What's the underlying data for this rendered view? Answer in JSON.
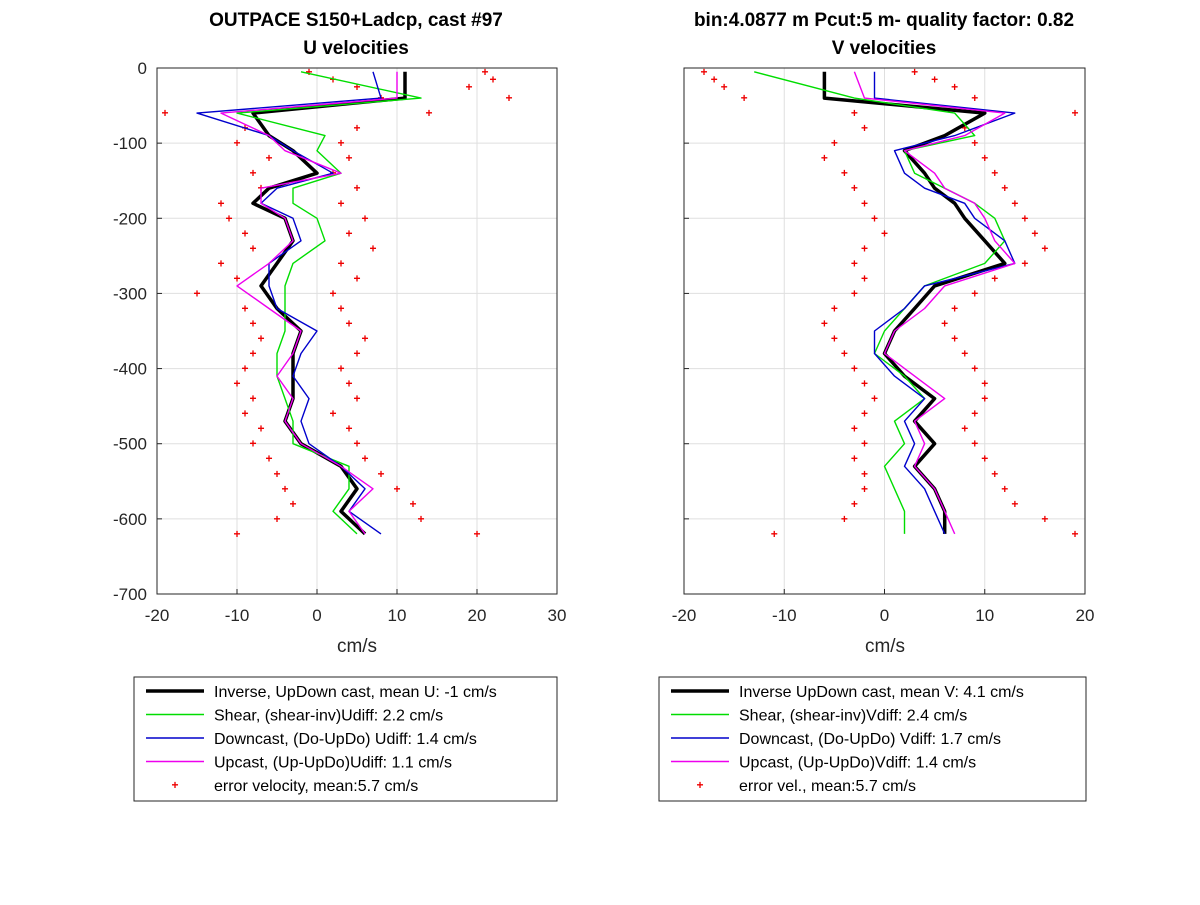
{
  "chart_data": [
    {
      "type": "line",
      "title_line1": "OUTPACE S150+Ladcp, cast #97",
      "title_line2": "U velocities",
      "xlabel": "cm/s",
      "ylabel": "",
      "xlim": [
        -20,
        30
      ],
      "ylim": [
        -700,
        0
      ],
      "xticks": [
        "-20",
        "-10",
        "0",
        "10",
        "20",
        "30"
      ],
      "yticks": [
        "0",
        "-100",
        "-200",
        "-300",
        "-400",
        "-500",
        "-600",
        "-700"
      ],
      "grid": true,
      "legend_position": "below",
      "depth": [
        -5,
        -40,
        -60,
        -90,
        -110,
        -140,
        -160,
        -180,
        -200,
        -230,
        -260,
        -290,
        -320,
        -350,
        -380,
        -410,
        -440,
        -470,
        -500,
        -530,
        -560,
        -590,
        -620
      ],
      "series": [
        {
          "name": "Inverse, UpDown cast, mean U:  -1 cm/s",
          "color": "#000000",
          "width": 3.5,
          "values": [
            11,
            11,
            -8,
            -6,
            -3,
            0,
            -6,
            -8,
            -4,
            -3,
            -5,
            -7,
            -5,
            -2,
            -3,
            -3,
            -3,
            -4,
            -2,
            3,
            5,
            3,
            6
          ]
        },
        {
          "name": "Shear, (shear-inv)Udiff:  2.2 cm/s",
          "color": "#00dd00",
          "width": 1.4,
          "values": [
            -2,
            13,
            -10,
            1,
            0,
            3,
            -3,
            -3,
            0,
            1,
            -3,
            -4,
            -4,
            -4,
            -5,
            -5,
            -4,
            -3,
            -3,
            4,
            4,
            2,
            5
          ]
        },
        {
          "name": "Downcast, (Do-UpDo) Udiff:  1.4 cm/s",
          "color": "#0000cc",
          "width": 1.4,
          "values": [
            7,
            8,
            -15,
            -6,
            -3,
            2,
            -5,
            -7,
            -3,
            -2,
            -6,
            -6,
            -5,
            0,
            -2,
            -3,
            -1,
            -2,
            -1,
            3,
            6,
            4,
            8
          ]
        },
        {
          "name": "Upcast, (Up-UpDo)Udiff:  1.1 cm/s",
          "color": "#ee00ee",
          "width": 1.4,
          "values": [
            10,
            10,
            -12,
            -6,
            -4,
            3,
            -7,
            -7,
            -4,
            -3,
            -6,
            -10,
            -6,
            -2,
            -3,
            -5,
            -3,
            -4,
            -2,
            3,
            7,
            4,
            6
          ]
        }
      ],
      "error_velocity": {
        "name": "error velocity, mean:5.7 cm/s",
        "color": "#ee0000",
        "depth": [
          -5,
          -15,
          -25,
          -40,
          -60,
          -80,
          -100,
          -120,
          -140,
          -160,
          -180,
          -200,
          -220,
          -240,
          -260,
          -280,
          -300,
          -320,
          -340,
          -360,
          -380,
          -400,
          -420,
          -440,
          -460,
          -480,
          -500,
          -520,
          -540,
          -560,
          -580,
          -600,
          -620
        ],
        "left": [
          -1,
          2,
          5,
          8,
          -19,
          -9,
          -10,
          -6,
          -8,
          -7,
          -12,
          -11,
          -9,
          -8,
          -12,
          -10,
          -15,
          -9,
          -8,
          -7,
          -8,
          -9,
          -10,
          -8,
          -9,
          -7,
          -8,
          -6,
          -5,
          -4,
          -3,
          -5,
          -10
        ],
        "right": [
          21,
          22,
          19,
          24,
          14,
          5,
          3,
          4,
          2,
          5,
          3,
          6,
          4,
          7,
          3,
          5,
          2,
          3,
          4,
          6,
          5,
          3,
          4,
          5,
          2,
          4,
          5,
          6,
          8,
          10,
          12,
          13,
          20
        ]
      }
    },
    {
      "type": "line",
      "title_line1": "bin:4.0877 m  Pcut:5 m- quality factor:  0.82",
      "title_line2": "V velocities",
      "xlabel": "cm/s",
      "ylabel": "",
      "xlim": [
        -20,
        20
      ],
      "ylim": [
        -700,
        0
      ],
      "xticks": [
        "-20",
        "-10",
        "0",
        "10",
        "20"
      ],
      "yticks": [],
      "grid": true,
      "legend_position": "below",
      "depth": [
        -5,
        -40,
        -60,
        -90,
        -110,
        -140,
        -160,
        -180,
        -200,
        -230,
        -260,
        -290,
        -320,
        -350,
        -380,
        -410,
        -440,
        -470,
        -500,
        -530,
        -560,
        -590,
        -620
      ],
      "series": [
        {
          "name": "Inverse UpDown cast, mean V:  4.1 cm/s",
          "color": "#000000",
          "width": 3.5,
          "values": [
            -6,
            -6,
            10,
            6,
            2,
            4,
            5,
            7,
            8,
            10,
            12,
            5,
            3,
            1,
            0,
            2,
            5,
            3,
            5,
            3,
            5,
            6,
            6
          ]
        },
        {
          "name": "Shear, (shear-inv)Vdiff:  2.4 cm/s",
          "color": "#00dd00",
          "width": 1.4,
          "values": [
            -13,
            -3,
            7,
            9,
            2,
            3,
            6,
            9,
            11,
            12,
            10,
            4,
            2,
            0,
            -1,
            2,
            4,
            1,
            2,
            0,
            1,
            2,
            2
          ]
        },
        {
          "name": "Downcast, (Do-UpDo) Vdiff:  1.7 cm/s",
          "color": "#0000cc",
          "width": 1.4,
          "values": [
            -1,
            -1,
            13,
            7,
            1,
            2,
            4,
            8,
            9,
            12,
            13,
            4,
            2,
            -1,
            -1,
            1,
            4,
            2,
            3,
            2,
            4,
            5,
            6
          ]
        },
        {
          "name": "Upcast, (Up-UpDo)Vdiff:  1.4 cm/s",
          "color": "#ee00ee",
          "width": 1.4,
          "values": [
            -3,
            -2,
            12,
            8,
            2,
            5,
            6,
            9,
            10,
            11,
            13,
            6,
            4,
            1,
            0,
            3,
            6,
            3,
            4,
            3,
            5,
            6,
            7
          ]
        }
      ],
      "error_velocity": {
        "name": "error vel., mean:5.7 cm/s",
        "color": "#ee0000",
        "depth": [
          -5,
          -15,
          -25,
          -40,
          -60,
          -80,
          -100,
          -120,
          -140,
          -160,
          -180,
          -200,
          -220,
          -240,
          -260,
          -280,
          -300,
          -320,
          -340,
          -360,
          -380,
          -400,
          -420,
          -440,
          -460,
          -480,
          -500,
          -520,
          -540,
          -560,
          -580,
          -600,
          -620
        ],
        "left": [
          -18,
          -17,
          -16,
          -14,
          -3,
          -2,
          -5,
          -6,
          -4,
          -3,
          -2,
          -1,
          0,
          -2,
          -3,
          -2,
          -3,
          -5,
          -6,
          -5,
          -4,
          -3,
          -2,
          -1,
          -2,
          -3,
          -2,
          -3,
          -2,
          -2,
          -3,
          -4,
          -11
        ],
        "right": [
          3,
          5,
          7,
          9,
          19,
          8,
          9,
          10,
          11,
          12,
          13,
          14,
          15,
          16,
          14,
          11,
          9,
          7,
          6,
          7,
          8,
          9,
          10,
          10,
          9,
          8,
          9,
          10,
          11,
          12,
          13,
          16,
          19
        ]
      }
    }
  ]
}
